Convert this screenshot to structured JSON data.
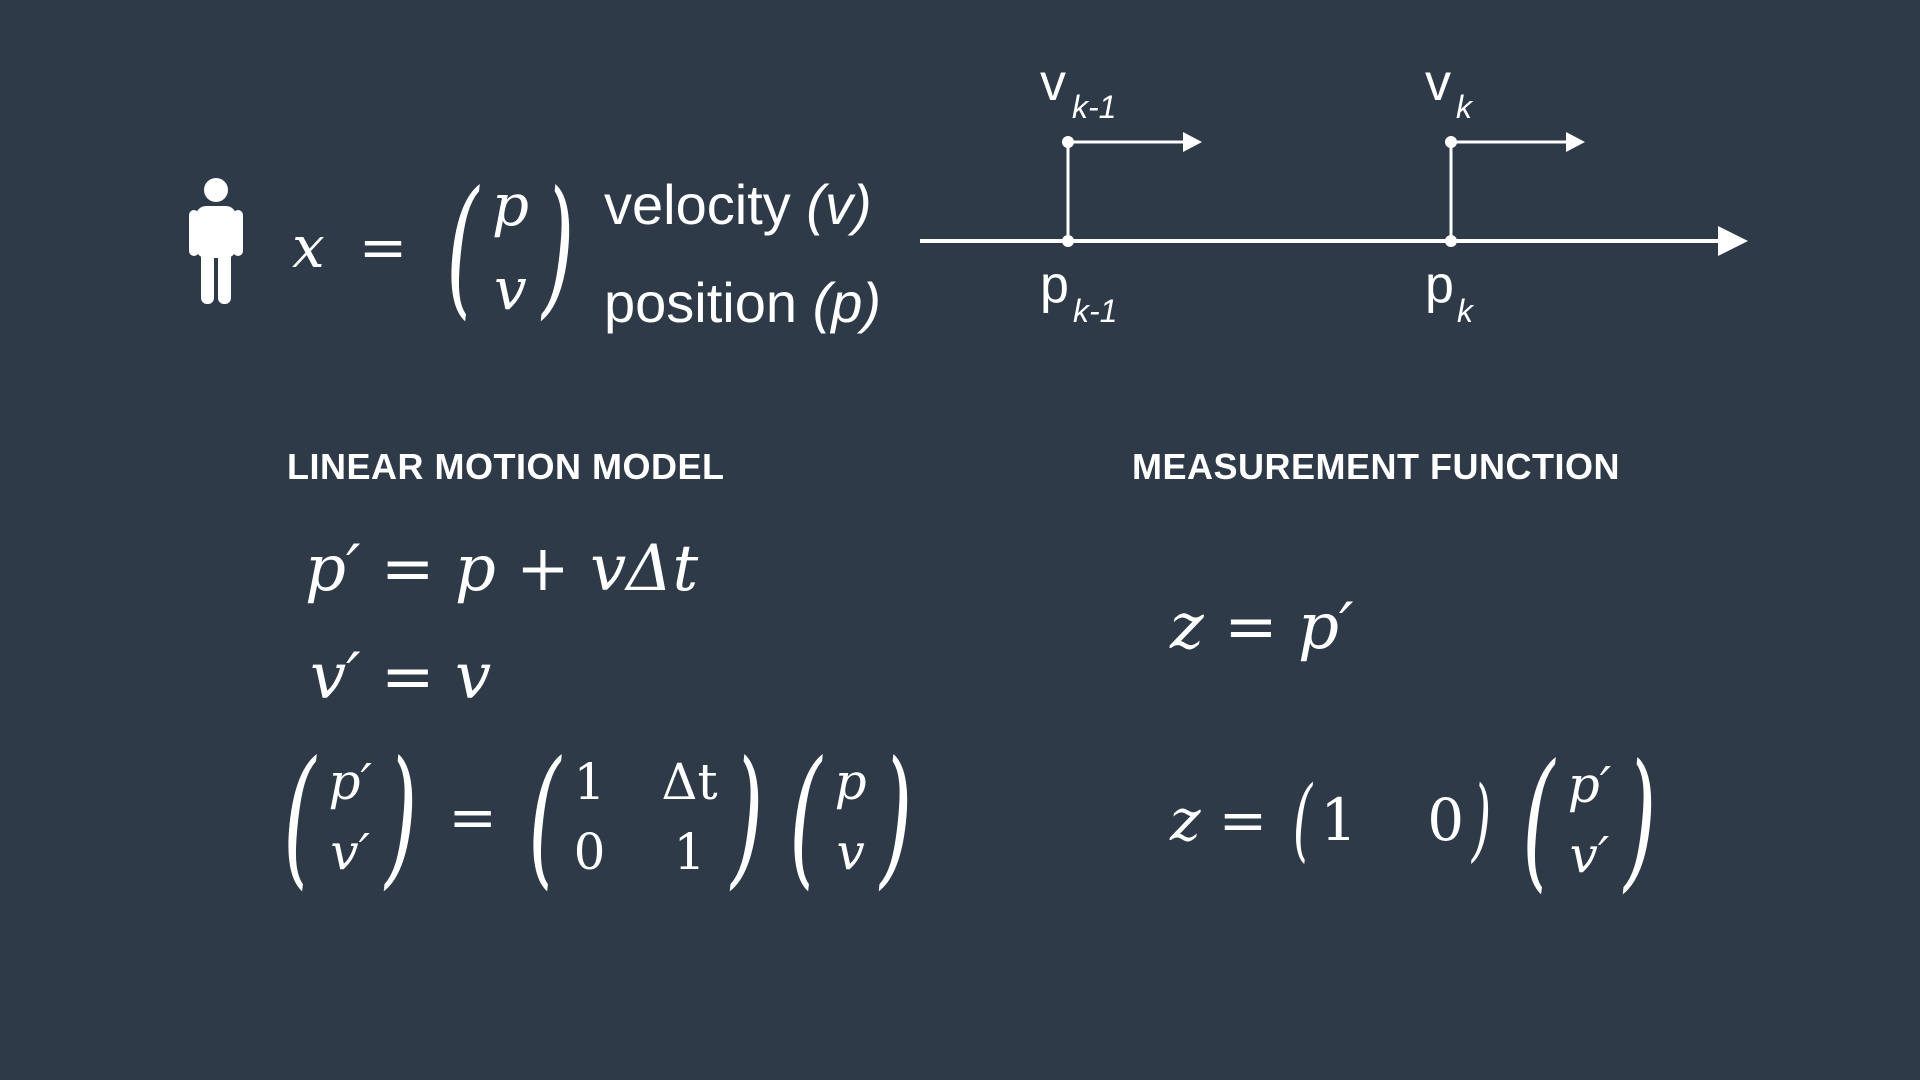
{
  "state": {
    "lhs": "x",
    "equals": "=",
    "vector": [
      "p",
      "v"
    ],
    "label_velocity_word": "velocity",
    "label_velocity_var": "(v)",
    "label_position_word": "position",
    "label_position_var": "(p)"
  },
  "timeline": {
    "v_prev": "v",
    "v_prev_sub": "k-1",
    "v_curr": "v",
    "v_curr_sub": "k",
    "p_prev": "p",
    "p_prev_sub": "k-1",
    "p_curr": "p",
    "p_curr_sub": "k"
  },
  "motion_model": {
    "heading": "LINEAR MOTION MODEL",
    "eq1": "p′ = p + vΔt",
    "eq2": "v′ = v",
    "lhs_vector": [
      "p′",
      "v′"
    ],
    "matrix": [
      "1",
      "Δt",
      "0",
      "1"
    ],
    "rhs_vector": [
      "p",
      "v"
    ],
    "equals": "="
  },
  "measurement": {
    "heading": "MEASUREMENT FUNCTION",
    "eq1": "z = p′",
    "lhs": "z",
    "equals": "=",
    "row_vector": [
      "1",
      "0"
    ],
    "col_vector": [
      "p′",
      "v′"
    ]
  },
  "icons": {
    "person": "person-icon"
  },
  "colors": {
    "background": "#2e3a47",
    "foreground": "#ffffff"
  }
}
